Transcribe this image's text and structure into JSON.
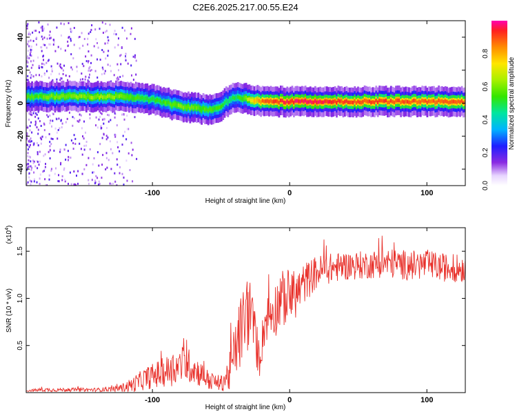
{
  "title": "C2E6.2025.217.00.55.E24",
  "chart_data": [
    {
      "type": "heatmap",
      "xlabel": "Height of straight line (km)",
      "ylabel": "Frequency (Hz)",
      "xlim": [
        -192,
        128
      ],
      "ylim": [
        -50,
        50
      ],
      "x_ticks": [
        -100,
        0,
        100
      ],
      "x_tick_labels": [
        "-100",
        "0",
        "100"
      ],
      "y_ticks": [
        -40,
        -20,
        0,
        20,
        40
      ],
      "y_tick_labels": [
        "-40",
        "-20",
        "0",
        "20",
        "40"
      ],
      "colorbar": {
        "label": "Normalized spectral amplitude",
        "range": [
          0,
          1
        ],
        "ticks": [
          0.0,
          0.2,
          0.4,
          0.6,
          0.8
        ],
        "tick_labels": [
          "0.0",
          "0.2",
          "0.4",
          "0.6",
          "0.8"
        ]
      },
      "ridge": {
        "x": [
          -185,
          -170,
          -155,
          -140,
          -125,
          -112,
          -100,
          -90,
          -80,
          -70,
          -60,
          -52,
          -46,
          -40,
          -34,
          -28,
          -22,
          -15,
          0,
          20,
          40,
          60,
          80,
          100,
          128
        ],
        "freq": [
          4,
          4,
          4,
          4,
          4,
          3,
          2,
          0,
          -2,
          -3,
          -4,
          -3,
          1,
          4,
          3,
          2,
          1,
          1,
          1,
          1,
          1,
          1,
          1,
          1,
          1
        ],
        "amplitude": [
          0.55,
          0.6,
          0.6,
          0.62,
          0.6,
          0.55,
          0.5,
          0.55,
          0.6,
          0.58,
          0.55,
          0.55,
          0.5,
          0.5,
          0.55,
          0.75,
          0.85,
          0.9,
          0.95,
          0.95,
          0.9,
          0.9,
          0.9,
          0.88,
          0.88
        ]
      }
    },
    {
      "type": "line",
      "xlabel": "Height of straight line (km)",
      "ylabel": "SNR (10 * v/v)",
      "y_multiplier_label": "(x10",
      "y_multiplier_exp": "4",
      "y_multiplier_close": ")",
      "xlim": [
        -192,
        128
      ],
      "ylim": [
        0,
        1.75
      ],
      "x_ticks": [
        -100,
        0,
        100
      ],
      "x_tick_labels": [
        "-100",
        "0",
        "100"
      ],
      "y_ticks": [
        0.5,
        1.0,
        1.5
      ],
      "y_tick_labels": [
        "0.5",
        "1.0",
        "1.5"
      ],
      "series": [
        {
          "color": "#e8302a",
          "x": [
            -192,
            -180,
            -160,
            -140,
            -125,
            -115,
            -105,
            -95,
            -85,
            -78,
            -72,
            -65,
            -58,
            -50,
            -44,
            -38,
            -33,
            -30,
            -26,
            -22,
            -18,
            -14,
            -10,
            -5,
            0,
            5,
            10,
            15,
            20,
            30,
            40,
            50,
            60,
            70,
            80,
            90,
            100,
            110,
            120,
            128
          ],
          "y": [
            0.02,
            0.03,
            0.03,
            0.03,
            0.04,
            0.08,
            0.15,
            0.2,
            0.25,
            0.3,
            0.28,
            0.2,
            0.12,
            0.1,
            0.2,
            0.55,
            0.75,
            0.9,
            0.65,
            0.35,
            0.75,
            0.85,
            0.9,
            1.0,
            1.0,
            1.05,
            1.15,
            1.22,
            1.28,
            1.32,
            1.34,
            1.35,
            1.36,
            1.38,
            1.36,
            1.35,
            1.36,
            1.33,
            1.32,
            1.32
          ],
          "noise": [
            0.01,
            0.02,
            0.02,
            0.02,
            0.03,
            0.08,
            0.12,
            0.15,
            0.18,
            0.2,
            0.18,
            0.14,
            0.1,
            0.08,
            0.2,
            0.35,
            0.45,
            0.45,
            0.3,
            0.2,
            0.25,
            0.25,
            0.3,
            0.3,
            0.3,
            0.25,
            0.22,
            0.2,
            0.18,
            0.16,
            0.15,
            0.15,
            0.15,
            0.16,
            0.16,
            0.16,
            0.16,
            0.15,
            0.15,
            0.15
          ]
        }
      ]
    }
  ]
}
